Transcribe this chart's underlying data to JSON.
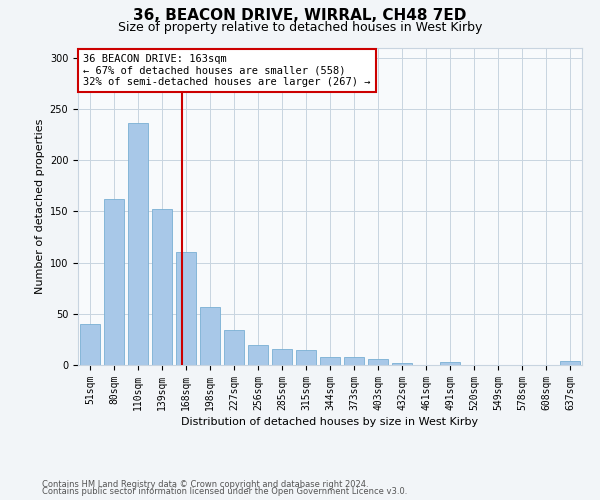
{
  "title1": "36, BEACON DRIVE, WIRRAL, CH48 7ED",
  "title2": "Size of property relative to detached houses in West Kirby",
  "xlabel": "Distribution of detached houses by size in West Kirby",
  "ylabel": "Number of detached properties",
  "categories": [
    "51sqm",
    "80sqm",
    "110sqm",
    "139sqm",
    "168sqm",
    "198sqm",
    "227sqm",
    "256sqm",
    "285sqm",
    "315sqm",
    "344sqm",
    "373sqm",
    "403sqm",
    "432sqm",
    "461sqm",
    "491sqm",
    "520sqm",
    "549sqm",
    "578sqm",
    "608sqm",
    "637sqm"
  ],
  "values": [
    40,
    162,
    236,
    152,
    110,
    57,
    34,
    20,
    16,
    15,
    8,
    8,
    6,
    2,
    0,
    3,
    0,
    0,
    0,
    0,
    4
  ],
  "bar_color": "#a8c8e8",
  "bar_edge_color": "#7aafd4",
  "annotation_line0": "36 BEACON DRIVE: 163sqm",
  "annotation_line1": "← 67% of detached houses are smaller (558)",
  "annotation_line2": "32% of semi-detached houses are larger (267) →",
  "vline_color": "#cc0000",
  "annotation_box_facecolor": "#ffffff",
  "annotation_box_edgecolor": "#cc0000",
  "ylim": [
    0,
    310
  ],
  "yticks": [
    0,
    50,
    100,
    150,
    200,
    250,
    300
  ],
  "footer1": "Contains HM Land Registry data © Crown copyright and database right 2024.",
  "footer2": "Contains public sector information licensed under the Open Government Licence v3.0.",
  "bg_color": "#f2f5f8",
  "plot_bg_color": "#f8fafc",
  "grid_color": "#c8d4e0",
  "title1_fontsize": 11,
  "title2_fontsize": 9,
  "xlabel_fontsize": 8,
  "ylabel_fontsize": 8,
  "tick_fontsize": 7,
  "annotation_fontsize": 7.5,
  "footer_fontsize": 6
}
